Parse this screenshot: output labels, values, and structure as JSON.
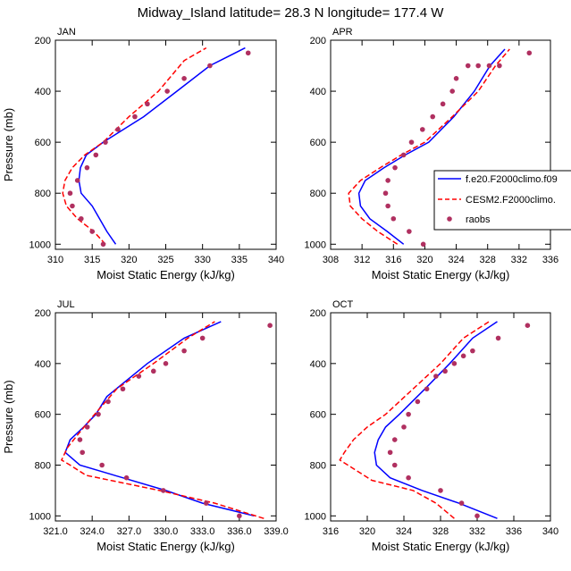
{
  "title": "Midway_Island  latitude= 28.3 N longitude= 177.4 W",
  "colors": {
    "model1": "#0000ff",
    "model2": "#ff0000",
    "obs": "#b03060",
    "axis": "#000000"
  },
  "legend": {
    "entries": [
      {
        "label": "f.e20.F2000climo.f09",
        "style": "solid",
        "color": "#0000ff"
      },
      {
        "label": "CESM2.F2000climo.",
        "style": "dashed",
        "color": "#ff0000"
      },
      {
        "label": "raobs",
        "style": "dot",
        "color": "#b03060"
      }
    ]
  },
  "chart_data": [
    {
      "type": "line",
      "panel_label": "JAN",
      "xlabel": "Moist Static Energy (kJ/kg)",
      "ylabel": "Pressure (mb)",
      "xlim": [
        310,
        340
      ],
      "ylim": [
        1020,
        200
      ],
      "xticks": [
        "310",
        "315",
        "320",
        "325",
        "330",
        "335",
        "340"
      ],
      "yticks": [
        "200",
        "400",
        "600",
        "800",
        "1000"
      ],
      "xtick_values": [
        310,
        315,
        320,
        325,
        330,
        335,
        340
      ],
      "ytick_values": [
        200,
        400,
        600,
        800,
        1000
      ],
      "series": [
        {
          "name": "f.e20.F2000climo.f09",
          "style": "solid",
          "color": "#0000ff",
          "x": [
            318.2,
            317.0,
            316.0,
            315.0,
            313.5,
            313.2,
            313.4,
            314.2,
            316.5,
            322.0,
            326.5,
            331.0,
            335.8
          ],
          "y": [
            1000,
            950,
            900,
            850,
            800,
            750,
            700,
            650,
            600,
            500,
            400,
            300,
            230
          ]
        },
        {
          "name": "CESM2.F2000climo.",
          "style": "dashed",
          "color": "#ff0000",
          "x": [
            316.8,
            315.2,
            313.0,
            311.5,
            311.0,
            311.3,
            312.3,
            314.0,
            316.5,
            320.0,
            324.0,
            327.5,
            330.5
          ],
          "y": [
            1000,
            950,
            900,
            850,
            800,
            750,
            700,
            650,
            600,
            500,
            400,
            280,
            230
          ]
        },
        {
          "name": "raobs",
          "style": "dot",
          "color": "#b03060",
          "x": [
            316.5,
            315.0,
            313.5,
            312.3,
            312.0,
            313.0,
            314.3,
            315.5,
            316.8,
            318.5,
            320.8,
            322.5,
            325.2,
            327.5,
            331.0,
            336.2
          ],
          "y": [
            1000,
            950,
            900,
            850,
            800,
            750,
            700,
            650,
            600,
            550,
            500,
            450,
            400,
            350,
            300,
            250
          ]
        }
      ]
    },
    {
      "type": "line",
      "panel_label": "APR",
      "xlabel": "Moist Static Energy (kJ/kg)",
      "ylabel": "",
      "xlim": [
        308,
        336
      ],
      "ylim": [
        1020,
        200
      ],
      "xticks": [
        "308",
        "312",
        "316",
        "320",
        "324",
        "328",
        "332",
        "336"
      ],
      "yticks": [
        "200",
        "400",
        "600",
        "800",
        "1000"
      ],
      "xtick_values": [
        308,
        312,
        316,
        320,
        324,
        328,
        332,
        336
      ],
      "ytick_values": [
        200,
        400,
        600,
        800,
        1000
      ],
      "series": [
        {
          "name": "f.e20.F2000climo.f09",
          "style": "solid",
          "color": "#0000ff",
          "x": [
            317.3,
            315.2,
            313.0,
            311.8,
            311.6,
            312.4,
            314.8,
            317.5,
            320.5,
            323.7,
            326.3,
            328.3,
            330.2
          ],
          "y": [
            1000,
            950,
            900,
            850,
            800,
            750,
            700,
            650,
            600,
            500,
            400,
            300,
            235
          ]
        },
        {
          "name": "CESM2.F2000climo.",
          "style": "dashed",
          "color": "#ff0000",
          "x": [
            316.5,
            314.0,
            312.0,
            310.5,
            310.3,
            311.8,
            314.3,
            317.0,
            320.0,
            323.5,
            326.8,
            329.0,
            330.8
          ],
          "y": [
            1000,
            950,
            900,
            850,
            800,
            750,
            700,
            650,
            600,
            500,
            400,
            300,
            235
          ]
        },
        {
          "name": "raobs",
          "style": "dot",
          "color": "#b03060",
          "x": [
            319.8,
            318.0,
            316.0,
            315.3,
            315.0,
            315.3,
            316.2,
            317.3,
            318.3,
            319.7,
            321.0,
            322.3,
            323.5,
            324.0,
            325.5,
            326.8,
            328.2,
            329.5,
            333.3
          ],
          "y": [
            1000,
            950,
            900,
            850,
            800,
            750,
            700,
            650,
            600,
            550,
            500,
            450,
            400,
            350,
            300,
            300,
            300,
            300,
            250
          ]
        }
      ]
    },
    {
      "type": "line",
      "panel_label": "JUL",
      "xlabel": "Moist Static Energy (kJ/kg)",
      "ylabel": "Pressure (mb)",
      "xlim": [
        321,
        339
      ],
      "ylim": [
        1020,
        200
      ],
      "xticks": [
        "321.0",
        "324.0",
        "327.0",
        "330.0",
        "333.0",
        "336.0",
        "339.0"
      ],
      "yticks": [
        "200",
        "400",
        "600",
        "800",
        "1000"
      ],
      "xtick_values": [
        321,
        324,
        327,
        330,
        333,
        336,
        339
      ],
      "ytick_values": [
        200,
        400,
        600,
        800,
        1000
      ],
      "series": [
        {
          "name": "f.e20.F2000climo.f09",
          "style": "solid",
          "color": "#0000ff",
          "x": [
            337.2,
            333.0,
            330.0,
            326.5,
            323.0,
            321.8,
            322.2,
            323.3,
            324.3,
            325.2,
            328.5,
            331.5,
            334.5
          ],
          "y": [
            1000,
            950,
            900,
            850,
            800,
            750,
            700,
            650,
            600,
            530,
            400,
            300,
            235
          ]
        },
        {
          "name": "CESM2.F2000climo.",
          "style": "dashed",
          "color": "#ff0000",
          "x": [
            338.0,
            334.0,
            329.5,
            323.5,
            322.2,
            321.5,
            322.0,
            323.0,
            324.2,
            326.0,
            329.0,
            331.8,
            334.0
          ],
          "y": [
            1010,
            950,
            900,
            840,
            800,
            780,
            730,
            670,
            600,
            500,
            400,
            300,
            235
          ]
        },
        {
          "name": "raobs",
          "style": "dot",
          "color": "#b03060",
          "x": [
            336.0,
            333.3,
            329.8,
            326.8,
            324.8,
            323.2,
            323.0,
            323.6,
            324.5,
            325.3,
            326.5,
            327.8,
            329.0,
            330.0,
            331.5,
            333.0,
            338.5
          ],
          "y": [
            1000,
            950,
            900,
            850,
            800,
            750,
            700,
            650,
            600,
            550,
            500,
            450,
            430,
            400,
            350,
            300,
            250
          ]
        }
      ]
    },
    {
      "type": "line",
      "panel_label": "OCT",
      "xlabel": "Moist Static Energy (kJ/kg)",
      "ylabel": "",
      "xlim": [
        316,
        340
      ],
      "ylim": [
        1020,
        200
      ],
      "xticks": [
        "316",
        "320",
        "324",
        "328",
        "332",
        "336",
        "340"
      ],
      "yticks": [
        "200",
        "400",
        "600",
        "800",
        "1000"
      ],
      "xtick_values": [
        316,
        320,
        324,
        328,
        332,
        336,
        340
      ],
      "ytick_values": [
        200,
        400,
        600,
        800,
        1000
      ],
      "series": [
        {
          "name": "f.e20.F2000climo.f09",
          "style": "solid",
          "color": "#0000ff",
          "x": [
            334.2,
            330.0,
            326.0,
            322.5,
            321.0,
            320.8,
            321.2,
            322.0,
            323.5,
            326.3,
            329.0,
            331.5,
            334.2
          ],
          "y": [
            1010,
            950,
            900,
            850,
            800,
            750,
            700,
            650,
            600,
            500,
            400,
            300,
            235
          ]
        },
        {
          "name": "CESM2.F2000climo.",
          "style": "dashed",
          "color": "#ff0000",
          "x": [
            329.5,
            327.5,
            325.0,
            320.5,
            317.0,
            317.5,
            318.5,
            320.0,
            322.0,
            325.0,
            328.0,
            330.5,
            333.3
          ],
          "y": [
            1010,
            950,
            900,
            860,
            780,
            750,
            700,
            650,
            600,
            500,
            400,
            300,
            235
          ]
        },
        {
          "name": "raobs",
          "style": "dot",
          "color": "#b03060",
          "x": [
            332.0,
            330.3,
            328.0,
            324.5,
            323.0,
            322.5,
            323.0,
            324.0,
            324.5,
            325.5,
            326.5,
            327.5,
            328.5,
            329.5,
            330.5,
            331.5,
            334.3,
            337.5
          ],
          "y": [
            1000,
            950,
            900,
            850,
            800,
            750,
            700,
            650,
            600,
            550,
            500,
            450,
            430,
            400,
            370,
            350,
            300,
            250
          ]
        }
      ]
    }
  ]
}
